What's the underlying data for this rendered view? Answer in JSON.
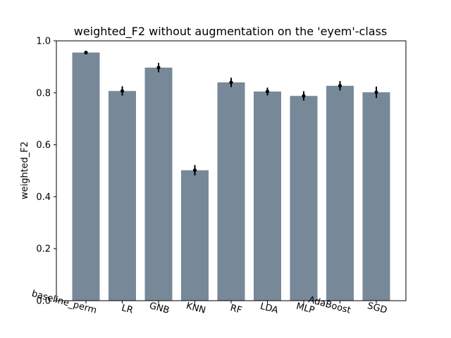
{
  "chart_data": {
    "type": "bar",
    "title": "weighted_F2 without augmentation on the 'eyem'-class",
    "xlabel": "",
    "ylabel": "weighted_F2",
    "categories": [
      "baseline_perm",
      "LR",
      "GNB",
      "KNN",
      "RF",
      "LDA",
      "MLP",
      "AdaBoost",
      "SGD"
    ],
    "values": [
      0.955,
      0.807,
      0.897,
      0.502,
      0.84,
      0.805,
      0.788,
      0.827,
      0.802
    ],
    "errors": [
      0.005,
      0.018,
      0.018,
      0.02,
      0.018,
      0.015,
      0.018,
      0.018,
      0.022
    ],
    "ylim": [
      0,
      1.0
    ],
    "yticks": [
      "0.0",
      "0.2",
      "0.4",
      "0.6",
      "0.8",
      "1.0"
    ],
    "tick_values": [
      0,
      0.2,
      0.4,
      0.6,
      0.8,
      1.0
    ],
    "grid": false,
    "legend": "none",
    "bar_color": "#778899",
    "error_color": "#000000"
  }
}
